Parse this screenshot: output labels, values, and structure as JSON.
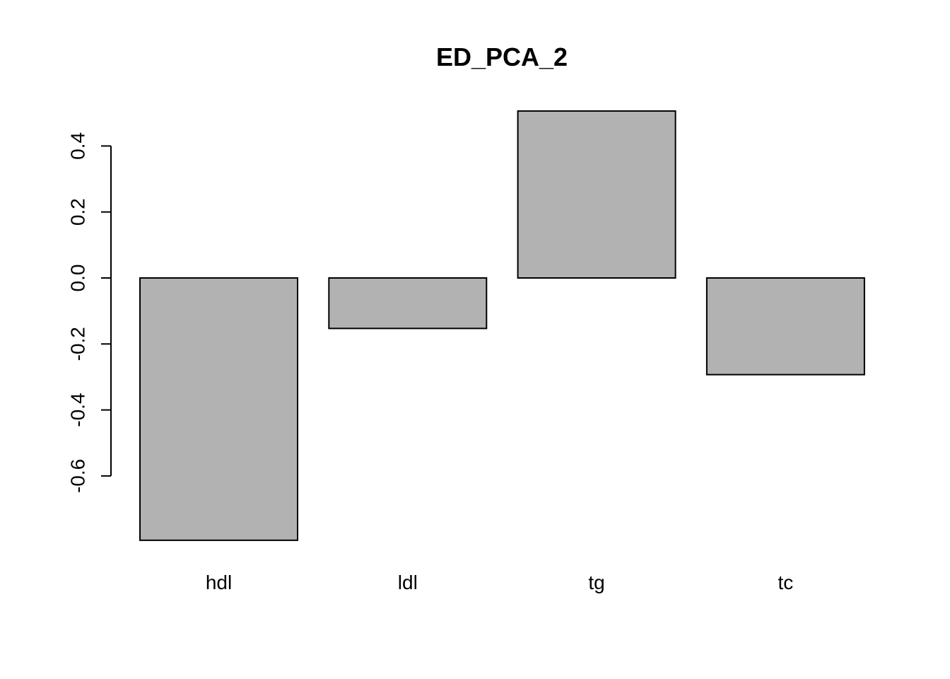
{
  "chart_data": {
    "type": "bar",
    "title": "ED_PCA_2",
    "xlabel": "",
    "ylabel": "",
    "categories": [
      "hdl",
      "ldl",
      "tg",
      "tc"
    ],
    "values": [
      -0.795,
      -0.153,
      0.506,
      -0.293
    ],
    "yticks": [
      -0.6,
      -0.4,
      -0.2,
      0.0,
      0.2,
      0.4
    ],
    "ytick_labels": [
      "-0.6",
      "-0.4",
      "-0.2",
      "0.0",
      "0.2",
      "0.4"
    ],
    "ylim": [
      -0.795,
      0.506
    ],
    "grid": false,
    "colors": {
      "bar_fill": "#b2b2b2",
      "bar_stroke": "#000000",
      "axis": "#000000"
    }
  }
}
